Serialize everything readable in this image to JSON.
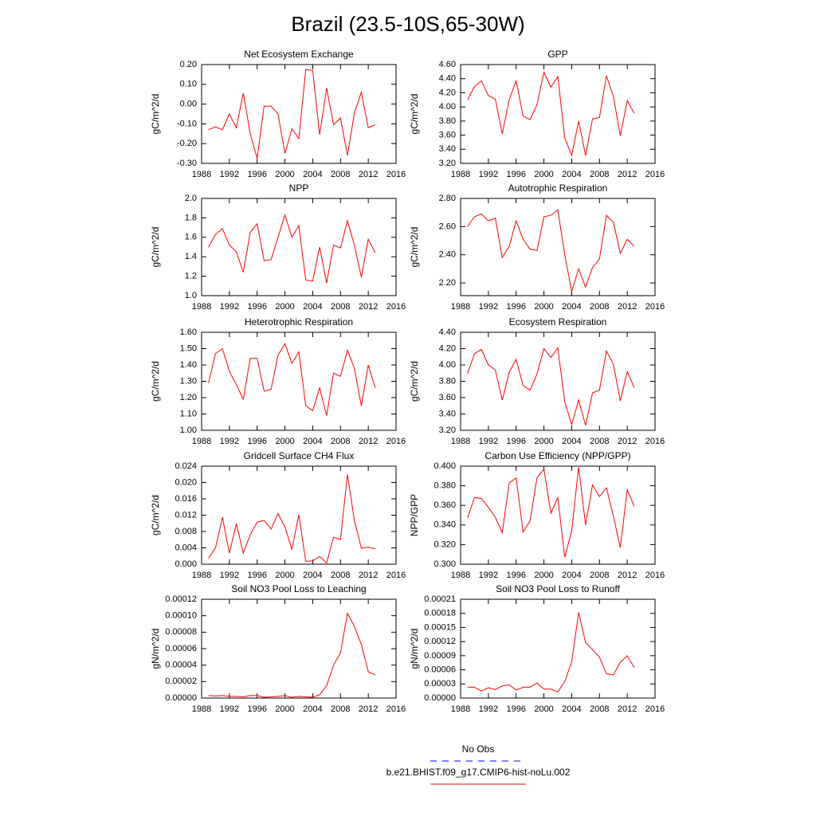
{
  "title": "Brazil (23.5-10S,65-30W)",
  "legend": [
    {
      "name": "No Obs",
      "color": "#0000ff",
      "dash": true
    },
    {
      "name": "b.e21.BHIST.f09_g17.CMIP6-hist-noLu.002",
      "color": "#ff0000"
    }
  ],
  "chart_data": [
    {
      "type": "line",
      "title": "Net Ecosystem Exchange",
      "ylabel": "gC/m^2/d",
      "color": "#ff0000",
      "x": [
        1989,
        1990,
        1991,
        1992,
        1993,
        1994,
        1995,
        1996,
        1997,
        1998,
        1999,
        2000,
        2001,
        2002,
        2003,
        2004,
        2005,
        2006,
        2007,
        2008,
        2009,
        2010,
        2011,
        2012,
        2013
      ],
      "values": [
        -0.13,
        -0.115,
        -0.13,
        -0.05,
        -0.12,
        0.055,
        -0.15,
        -0.275,
        -0.01,
        -0.01,
        -0.05,
        -0.25,
        -0.125,
        -0.175,
        0.175,
        0.17,
        -0.155,
        0.08,
        -0.105,
        -0.07,
        -0.26,
        -0.045,
        0.06,
        -0.12,
        -0.105
      ],
      "xlim": [
        1988,
        2016
      ],
      "xticks": [
        1988,
        1992,
        1996,
        2000,
        2004,
        2008,
        2012,
        2016
      ],
      "ylim": [
        -0.3,
        0.2
      ],
      "yticks": [
        {
          "value": -0.3,
          "label": "-0.30"
        },
        {
          "value": -0.2,
          "label": "-0.20"
        },
        {
          "value": -0.1,
          "label": "-0.10"
        },
        {
          "value": 0,
          "label": "0.00"
        },
        {
          "value": 0.1,
          "label": "0.10"
        },
        {
          "value": 0.2,
          "label": "0.20"
        }
      ]
    },
    {
      "type": "line",
      "title": "GPP",
      "ylabel": "gC/m^2/d",
      "color": "#ff0000",
      "x": [
        1989,
        1990,
        1991,
        1992,
        1993,
        1994,
        1995,
        1996,
        1997,
        1998,
        1999,
        2000,
        2001,
        2002,
        2003,
        2004,
        2005,
        2006,
        2007,
        2008,
        2009,
        2010,
        2011,
        2012,
        2013
      ],
      "values": [
        4.1,
        4.29,
        4.37,
        4.16,
        4.11,
        3.62,
        4.1,
        4.37,
        3.87,
        3.82,
        4.03,
        4.49,
        4.28,
        4.43,
        3.56,
        3.31,
        3.8,
        3.31,
        3.83,
        3.85,
        4.44,
        4.15,
        3.59,
        4.09,
        3.91
      ],
      "xlim": [
        1988,
        2016
      ],
      "xticks": [
        1988,
        1992,
        1996,
        2000,
        2004,
        2008,
        2012,
        2016
      ],
      "ylim": [
        3.2,
        4.6
      ],
      "yticks": [
        {
          "value": 3.2,
          "label": "3.20"
        },
        {
          "value": 3.4,
          "label": "3.40"
        },
        {
          "value": 3.6,
          "label": "3.60"
        },
        {
          "value": 3.8,
          "label": "3.80"
        },
        {
          "value": 4.0,
          "label": "4.00"
        },
        {
          "value": 4.2,
          "label": "4.20"
        },
        {
          "value": 4.4,
          "label": "4.40"
        },
        {
          "value": 4.6,
          "label": "4.60"
        }
      ]
    },
    {
      "type": "line",
      "title": "NPP",
      "ylabel": "gC/m^2/d",
      "color": "#ff0000",
      "x": [
        1989,
        1990,
        1991,
        1992,
        1993,
        1994,
        1995,
        1996,
        1997,
        1998,
        1999,
        2000,
        2001,
        2002,
        2003,
        2004,
        2005,
        2006,
        2007,
        2008,
        2009,
        2010,
        2011,
        2012,
        2013
      ],
      "values": [
        1.5,
        1.63,
        1.69,
        1.52,
        1.45,
        1.24,
        1.65,
        1.74,
        1.36,
        1.37,
        1.6,
        1.83,
        1.6,
        1.72,
        1.16,
        1.15,
        1.5,
        1.13,
        1.52,
        1.49,
        1.77,
        1.52,
        1.19,
        1.58,
        1.44
      ],
      "xlim": [
        1988,
        2016
      ],
      "xticks": [
        1988,
        1992,
        1996,
        2000,
        2004,
        2008,
        2012,
        2016
      ],
      "ylim": [
        1.0,
        2.0
      ],
      "yticks": [
        {
          "value": 1.0,
          "label": "1.0"
        },
        1.2,
        1.4,
        1.6,
        1.8,
        {
          "value": 2.0,
          "label": "2.0"
        }
      ]
    },
    {
      "type": "line",
      "title": "Autotrophic Respiration",
      "ylabel": "gC/m^2/d",
      "color": "#ff0000",
      "x": [
        1989,
        1990,
        1991,
        1992,
        1993,
        1994,
        1995,
        1996,
        1997,
        1998,
        1999,
        2000,
        2001,
        2002,
        2003,
        2004,
        2005,
        2006,
        2007,
        2008,
        2009,
        2010,
        2011,
        2012,
        2013
      ],
      "values": [
        2.6,
        2.67,
        2.69,
        2.64,
        2.66,
        2.38,
        2.46,
        2.64,
        2.51,
        2.44,
        2.43,
        2.67,
        2.68,
        2.72,
        2.4,
        2.14,
        2.3,
        2.17,
        2.31,
        2.37,
        2.68,
        2.63,
        2.41,
        2.51,
        2.46
      ],
      "xlim": [
        1988,
        2016
      ],
      "xticks": [
        1988,
        1992,
        1996,
        2000,
        2004,
        2008,
        2012,
        2016
      ],
      "ylim": [
        2.11,
        2.8
      ],
      "yticks": [
        {
          "value": 2.2,
          "label": "2.20"
        },
        {
          "value": 2.4,
          "label": "2.40"
        },
        {
          "value": 2.6,
          "label": "2.60"
        },
        {
          "value": 2.8,
          "label": "2.80"
        }
      ]
    },
    {
      "type": "line",
      "title": "Heterotrophic Respiration",
      "ylabel": "gC/m^2/d",
      "color": "#ff0000",
      "x": [
        1989,
        1990,
        1991,
        1992,
        1993,
        1994,
        1995,
        1996,
        1997,
        1998,
        1999,
        2000,
        2001,
        2002,
        2003,
        2004,
        2005,
        2006,
        2007,
        2008,
        2009,
        2010,
        2011,
        2012,
        2013
      ],
      "values": [
        1.29,
        1.47,
        1.5,
        1.36,
        1.28,
        1.19,
        1.44,
        1.44,
        1.24,
        1.25,
        1.46,
        1.53,
        1.41,
        1.48,
        1.15,
        1.12,
        1.26,
        1.09,
        1.35,
        1.33,
        1.49,
        1.38,
        1.15,
        1.4,
        1.26
      ],
      "xlim": [
        1988,
        2016
      ],
      "xticks": [
        1988,
        1992,
        1996,
        2000,
        2004,
        2008,
        2012,
        2016
      ],
      "ylim": [
        1.0,
        1.6
      ],
      "yticks": [
        {
          "value": 1.0,
          "label": "1.00"
        },
        {
          "value": 1.1,
          "label": "1.10"
        },
        {
          "value": 1.2,
          "label": "1.20"
        },
        {
          "value": 1.3,
          "label": "1.30"
        },
        {
          "value": 1.4,
          "label": "1.40"
        },
        {
          "value": 1.5,
          "label": "1.50"
        },
        {
          "value": 1.6,
          "label": "1.60"
        }
      ]
    },
    {
      "type": "line",
      "title": "Ecosystem Respiration",
      "ylabel": "gC/m^2/d",
      "color": "#ff0000",
      "x": [
        1989,
        1990,
        1991,
        1992,
        1993,
        1994,
        1995,
        1996,
        1997,
        1998,
        1999,
        2000,
        2001,
        2002,
        2003,
        2004,
        2005,
        2006,
        2007,
        2008,
        2009,
        2010,
        2011,
        2012,
        2013
      ],
      "values": [
        3.89,
        4.14,
        4.19,
        4.0,
        3.94,
        3.57,
        3.91,
        4.07,
        3.75,
        3.69,
        3.89,
        4.2,
        4.09,
        4.21,
        3.55,
        3.27,
        3.57,
        3.26,
        3.66,
        3.69,
        4.17,
        4.01,
        3.56,
        3.92,
        3.72
      ],
      "xlim": [
        1988,
        2016
      ],
      "xticks": [
        1988,
        1992,
        1996,
        2000,
        2004,
        2008,
        2012,
        2016
      ],
      "ylim": [
        3.2,
        4.4
      ],
      "yticks": [
        {
          "value": 3.2,
          "label": "3.20"
        },
        {
          "value": 3.4,
          "label": "3.40"
        },
        {
          "value": 3.6,
          "label": "3.60"
        },
        {
          "value": 3.8,
          "label": "3.80"
        },
        {
          "value": 4.0,
          "label": "4.00"
        },
        {
          "value": 4.2,
          "label": "4.20"
        },
        {
          "value": 4.4,
          "label": "4.40"
        }
      ]
    },
    {
      "type": "line",
      "title": "Gridcell Surface CH4 Flux",
      "ylabel": "gC/m^2/d",
      "color": "#ff0000",
      "x": [
        1989,
        1990,
        1991,
        1992,
        1993,
        1994,
        1995,
        1996,
        1997,
        1998,
        1999,
        2000,
        2001,
        2002,
        2003,
        2004,
        2005,
        2006,
        2007,
        2008,
        2009,
        2010,
        2011,
        2012,
        2013
      ],
      "values": [
        0.0015,
        0.004,
        0.0115,
        0.0027,
        0.0099,
        0.0027,
        0.0072,
        0.0103,
        0.0107,
        0.0086,
        0.0124,
        0.0091,
        0.0036,
        0.0121,
        0.0007,
        0.0008,
        0.0019,
        0.0003,
        0.0066,
        0.006,
        0.022,
        0.0107,
        0.0039,
        0.0042,
        0.0037
      ],
      "xlim": [
        1988,
        2016
      ],
      "xticks": [
        1988,
        1992,
        1996,
        2000,
        2004,
        2008,
        2012,
        2016
      ],
      "ylim": [
        0,
        0.024
      ],
      "yticks": [
        {
          "value": 0,
          "label": "0.000"
        },
        0.004,
        0.008,
        0.012,
        0.016,
        {
          "value": 0.02,
          "label": "0.020"
        },
        0.024
      ]
    },
    {
      "type": "line",
      "title": "Carbon Use Efficiency (NPP/GPP)",
      "ylabel": "NPP/GPP",
      "color": "#ff0000",
      "x": [
        1989,
        1990,
        1991,
        1992,
        1993,
        1994,
        1995,
        1996,
        1997,
        1998,
        1999,
        2000,
        2001,
        2002,
        2003,
        2004,
        2005,
        2006,
        2007,
        2008,
        2009,
        2010,
        2011,
        2012,
        2013
      ],
      "values": [
        0.347,
        0.368,
        0.367,
        0.358,
        0.348,
        0.332,
        0.383,
        0.388,
        0.333,
        0.344,
        0.388,
        0.397,
        0.352,
        0.368,
        0.307,
        0.334,
        0.399,
        0.34,
        0.381,
        0.369,
        0.378,
        0.349,
        0.317,
        0.376,
        0.359
      ],
      "xlim": [
        1988,
        2016
      ],
      "xticks": [
        1988,
        1992,
        1996,
        2000,
        2004,
        2008,
        2012,
        2016
      ],
      "ylim": [
        0.3,
        0.4
      ],
      "yticks": [
        {
          "value": 0.3,
          "label": "0.300"
        },
        {
          "value": 0.32,
          "label": "0.320"
        },
        {
          "value": 0.34,
          "label": "0.340"
        },
        {
          "value": 0.36,
          "label": "0.360"
        },
        {
          "value": 0.38,
          "label": "0.380"
        },
        {
          "value": 0.4,
          "label": "0.400"
        }
      ]
    },
    {
      "type": "line",
      "title": "Soil NO3 Pool Loss to Leaching",
      "ylabel": "gN/m^2/d",
      "color": "#ff0000",
      "x": [
        1989,
        1990,
        1991,
        1992,
        1993,
        1994,
        1995,
        1996,
        1997,
        1998,
        1999,
        2000,
        2001,
        2002,
        2003,
        2004,
        2005,
        2006,
        2007,
        2008,
        2009,
        2010,
        2011,
        2012,
        2013
      ],
      "values": [
        3e-06,
        2.5e-06,
        3e-06,
        2e-06,
        2e-06,
        1.5e-06,
        3e-06,
        3e-06,
        1e-06,
        1.5e-06,
        2e-06,
        3e-06,
        1e-06,
        2e-06,
        1.5e-06,
        1e-06,
        4e-06,
        1.5e-05,
        4e-05,
        5.5e-05,
        0.000103,
        8.7e-05,
        6.5e-05,
        3.2e-05,
        2.8e-05
      ],
      "xlim": [
        1988,
        2016
      ],
      "xticks": [
        1988,
        1992,
        1996,
        2000,
        2004,
        2008,
        2012,
        2016
      ],
      "ylim": [
        0,
        0.00012
      ],
      "yticks": [
        {
          "value": 0,
          "label": "0.00000"
        },
        2e-05,
        4e-05,
        6e-05,
        8e-05,
        {
          "value": 0.0001,
          "label": "0.00010"
        },
        0.00012
      ]
    },
    {
      "type": "line",
      "title": "Soil NO3 Pool Loss to Runoff",
      "ylabel": "gN/m^2/d",
      "color": "#ff0000",
      "x": [
        1989,
        1990,
        1991,
        1992,
        1993,
        1994,
        1995,
        1996,
        1997,
        1998,
        1999,
        2000,
        2001,
        2002,
        2003,
        2004,
        2005,
        2006,
        2007,
        2008,
        2009,
        2010,
        2011,
        2012,
        2013
      ],
      "values": [
        2.3e-05,
        2.3e-05,
        1.5e-05,
        2.2e-05,
        1.8e-05,
        2.6e-05,
        2.8e-05,
        1.7e-05,
        2.3e-05,
        2.3e-05,
        3.2e-05,
        1.9e-05,
        1.9e-05,
        1.3e-05,
        3.5e-05,
        7.7e-05,
        0.000182,
        0.000118,
        0.000103,
        8.7e-05,
        5.2e-05,
        4.9e-05,
        7.6e-05,
        9e-05,
        6.5e-05
      ],
      "xlim": [
        1988,
        2016
      ],
      "xticks": [
        1988,
        1992,
        1996,
        2000,
        2004,
        2008,
        2012,
        2016
      ],
      "ylim": [
        0,
        0.00021
      ],
      "yticks": [
        {
          "value": 0,
          "label": "0.00000"
        },
        3e-05,
        6e-05,
        9e-05,
        0.00012,
        0.00015,
        0.00018,
        0.00021
      ]
    }
  ]
}
